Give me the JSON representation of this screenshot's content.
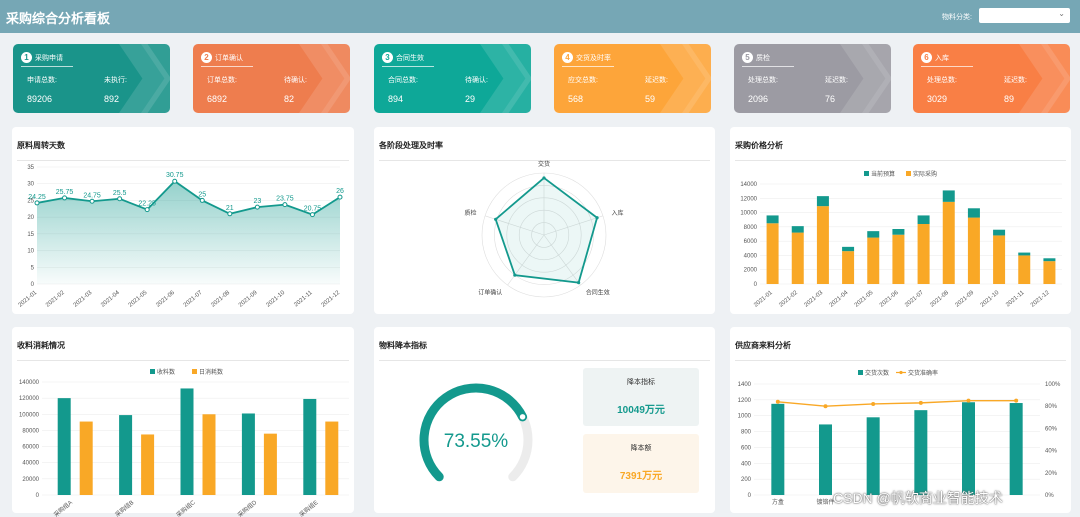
{
  "header": {
    "title": "采购综合分析看板",
    "filter_label": "物料分类:",
    "filter_value": ""
  },
  "colors": {
    "teal": "#13998d",
    "orange": "#f9a826",
    "header_bg": "#76a7b5"
  },
  "kpis": [
    {
      "num": "1",
      "title": "采购申请",
      "l1": "申请总数:",
      "l2": "未执行:",
      "v1": "89206",
      "v2": "892",
      "color": "#1a948a"
    },
    {
      "num": "2",
      "title": "订单确认",
      "l1": "订单总数:",
      "l2": "待确认:",
      "v1": "6892",
      "v2": "82",
      "color": "#ee7d4e"
    },
    {
      "num": "3",
      "title": "合同生效",
      "l1": "合同总数:",
      "l2": "待确认:",
      "v1": "894",
      "v2": "29",
      "color": "#0ea898"
    },
    {
      "num": "4",
      "title": "交货及时率",
      "l1": "应交总数:",
      "l2": "延迟数:",
      "v1": "568",
      "v2": "59",
      "color": "#fda53a"
    },
    {
      "num": "5",
      "title": "质检",
      "l1": "处理总数:",
      "l2": "延迟数:",
      "v1": "2096",
      "v2": "76",
      "color": "#9c9ba3"
    },
    {
      "num": "6",
      "title": "入库",
      "l1": "处理总数:",
      "l2": "延迟数:",
      "v1": "3029",
      "v2": "89",
      "color": "#f97f45"
    }
  ],
  "panels": {
    "p1": "原料周转天数",
    "p2": "各阶段处理及时率",
    "p3": "采购价格分析",
    "p4": "收料消耗情况",
    "p5": "物料降本指标",
    "p6": "供应商来料分析"
  },
  "chart_data": [
    {
      "type": "area",
      "id": "turnover",
      "title": "原料周转天数",
      "categories": [
        "2021-01",
        "2021-02",
        "2021-03",
        "2021-04",
        "2021-05",
        "2021-06",
        "2021-07",
        "2021-08",
        "2021-09",
        "2021-10",
        "2021-11",
        "2021-12"
      ],
      "values": [
        24.25,
        25.75,
        24.75,
        25.5,
        22.25,
        30.75,
        25,
        21,
        23,
        23.75,
        20.75,
        26
      ],
      "labels": [
        "24.25",
        "25.75",
        "24.75",
        "25.5",
        "22.25",
        "30.75",
        "25",
        "21",
        "23",
        "23.75",
        "20.75",
        "26"
      ],
      "yticks": [
        "0",
        "5",
        "10",
        "15",
        "20",
        "25",
        "30",
        "35"
      ],
      "ylim": [
        0,
        35
      ]
    },
    {
      "type": "radar",
      "id": "stages",
      "title": "各阶段处理及时率",
      "axes": [
        "交货",
        "入库",
        "合同生效",
        "订单确认",
        "质检"
      ],
      "values": [
        0.92,
        0.9,
        0.95,
        0.8,
        0.82
      ],
      "max": 1
    },
    {
      "type": "bar",
      "id": "price",
      "title": "采购价格分析",
      "stacked": true,
      "categories": [
        "2021-01",
        "2021-02",
        "2021-03",
        "2021-04",
        "2021-05",
        "2021-06",
        "2021-07",
        "2021-08",
        "2021-09",
        "2021-10",
        "2021-11",
        "2021-12"
      ],
      "series": [
        {
          "name": "实际采购",
          "values": [
            8500,
            7200,
            10900,
            4600,
            6500,
            6900,
            8400,
            11500,
            9300,
            6800,
            4000,
            3200
          ],
          "color": "#f9a826"
        },
        {
          "name": "当前预算",
          "values": [
            1100,
            900,
            1400,
            600,
            900,
            800,
            1200,
            1600,
            1300,
            800,
            400,
            400
          ],
          "color": "#13998d"
        }
      ],
      "legend_order": [
        "当前预算",
        "实际采购"
      ],
      "yticks": [
        "0",
        "2000",
        "4000",
        "6000",
        "8000",
        "10000",
        "12000",
        "14000"
      ],
      "ylim": [
        0,
        14000
      ]
    },
    {
      "type": "bar",
      "id": "material",
      "title": "收料消耗情况",
      "categories": [
        "采购组A",
        "采购组B",
        "采购组C",
        "采购组D",
        "采购组E"
      ],
      "series": [
        {
          "name": "收料数",
          "values": [
            120000,
            99000,
            132000,
            101000,
            119000
          ],
          "color": "#13998d"
        },
        {
          "name": "日消耗数",
          "values": [
            91000,
            75000,
            100000,
            76000,
            91000
          ],
          "color": "#f9a826"
        }
      ],
      "yticks": [
        "0",
        "20000",
        "40000",
        "60000",
        "80000",
        "100000",
        "120000",
        "140000"
      ],
      "ylim": [
        0,
        140000
      ]
    },
    {
      "type": "gauge",
      "id": "costdown",
      "title": "物料降本指标",
      "value": 73.55,
      "label": "73.55%",
      "boxes": [
        {
          "label": "降本指标",
          "value": "10049万元"
        },
        {
          "label": "降本额",
          "value": "7391万元"
        }
      ]
    },
    {
      "type": "bar",
      "id": "supplier",
      "title": "供应商来料分析",
      "categories": [
        "方盒",
        "镀铬件",
        "",
        "",
        "",
        ""
      ],
      "series": [
        {
          "name": "交货次数",
          "values": [
            1150,
            890,
            980,
            1070,
            1170,
            1160
          ],
          "color": "#13998d"
        },
        {
          "name": "交货准确率",
          "values": [
            0.84,
            0.8,
            0.82,
            0.83,
            0.85,
            0.85
          ],
          "color": "#f9a826",
          "axis": "right"
        }
      ],
      "yticks": [
        "0",
        "200",
        "400",
        "600",
        "800",
        "1000",
        "1200",
        "1400"
      ],
      "ylim": [
        0,
        1400
      ],
      "y2ticks": [
        "0%",
        "20%",
        "40%",
        "60%",
        "80%",
        "100%"
      ],
      "y2lim": [
        0,
        1
      ]
    }
  ],
  "watermark": "CSDN @帆软商业智能技术"
}
